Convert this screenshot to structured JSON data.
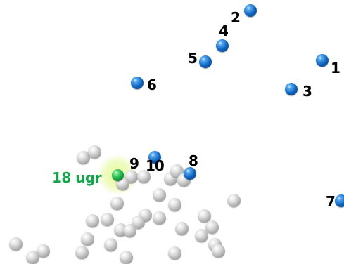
{
  "player": {
    "label": "18 ugr"
  },
  "targets": [
    {
      "label": "1"
    },
    {
      "label": "2"
    },
    {
      "label": "3"
    },
    {
      "label": "4"
    },
    {
      "label": "5"
    },
    {
      "label": "6"
    },
    {
      "label": "7"
    },
    {
      "label": "8"
    },
    {
      "label": "9"
    },
    {
      "label": "10"
    }
  ],
  "colors": {
    "target_ball": "#0d63bd",
    "player_ball": "#0e9a3b",
    "player_label": "#12a54a",
    "neutral_ball": "#a9a9a9",
    "highlight_glow": "#e6fa96"
  }
}
